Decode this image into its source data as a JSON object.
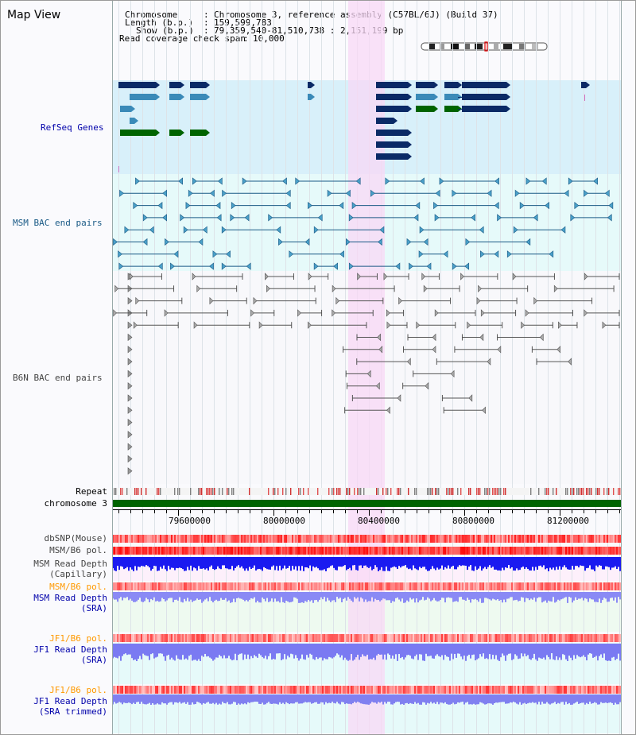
{
  "app": {
    "title": "Map View"
  },
  "info": {
    "chromosome_key": "Chromosome",
    "chromosome_value": "Chromosome 3, reference assembly (C57BL/6J) (Build 37)",
    "length_key": "Length (b.p.)",
    "length_value": "159,599,783",
    "show_key": "Show (b.p.)",
    "show_value": "79,359,540-81,510,738 : 2,151,199 bp",
    "coverage_key": "Read coverage check span",
    "coverage_value": "10,000"
  },
  "tracks": {
    "refseq": "RefSeq Genes",
    "msm_bac": "MSM BAC end pairs",
    "b6n_bac": "B6N BAC end pairs",
    "repeat": "Repeat",
    "chromosome": "chromosome 3",
    "dbsnp": "dbSNP(Mouse)",
    "msm_b6_pol": "MSM/B6 pol.",
    "msm_depth_cap_1": "MSM Read Depth",
    "msm_depth_cap_2": "(Capillary)",
    "msm_b6_pol_2": "MSM/B6 pol.",
    "msm_depth_sra_1": "MSM Read Depth",
    "msm_depth_sra_2": "(SRA)",
    "jf1_b6_pol": "JF1/B6 pol.",
    "jf1_depth_sra_1": "JF1 Read Depth",
    "jf1_depth_sra_2": "(SRA)",
    "jf1_b6_pol_2": "JF1/B6 pol.",
    "jf1_depth_trim_1": "JF1 Read Depth",
    "jf1_depth_trim_2": "(SRA trimmed)"
  },
  "axis": {
    "ticks": [
      "79600000",
      "80000000",
      "80400000",
      "80800000",
      "81200000"
    ]
  },
  "colors": {
    "refseq_bg": "#d8f0fa",
    "msm_bg": "#e6fafa",
    "highlight": "#f8d8f5",
    "chromosome_bar": "#006400",
    "refseq_dark": "#0a2a66",
    "refseq_light": "#3a8ab8",
    "refseq_green": "#006400",
    "msm_line": "#1a5a86",
    "b6n_line": "#555555"
  }
}
